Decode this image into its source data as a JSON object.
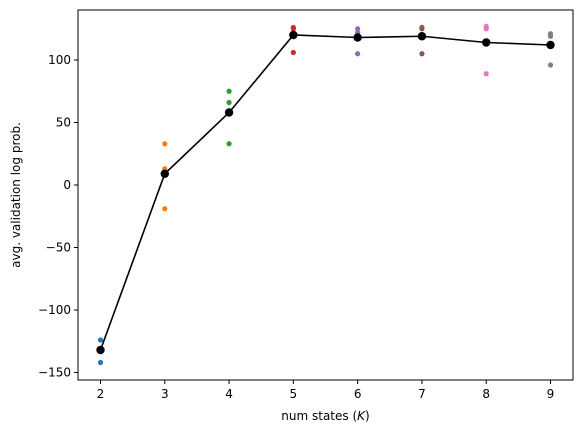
{
  "chart_data": {
    "type": "scatter",
    "title": "",
    "xlabel_prefix": "num states (",
    "xlabel_var": "K",
    "xlabel_suffix": ")",
    "ylabel": "avg. validation log prob.",
    "xlim": [
      1.65,
      9.35
    ],
    "ylim": [
      -156,
      140
    ],
    "xticks": [
      2,
      3,
      4,
      5,
      6,
      7,
      8,
      9
    ],
    "yticks": [
      -150,
      -100,
      -50,
      0,
      50,
      100
    ],
    "grid": false,
    "legend": "none",
    "mean_series": {
      "color": "#000000",
      "x": [
        2,
        3,
        4,
        5,
        6,
        7,
        8,
        9
      ],
      "y": [
        -132,
        9,
        58,
        120,
        118,
        119,
        114,
        112
      ]
    },
    "runs": [
      {
        "x": 2,
        "color": "#1f77b4",
        "y": [
          -124,
          -131,
          -133,
          -142
        ]
      },
      {
        "x": 3,
        "color": "#ff7f0e",
        "y": [
          33,
          13,
          -19
        ]
      },
      {
        "x": 4,
        "color": "#2ca02c",
        "y": [
          75,
          66,
          33
        ]
      },
      {
        "x": 5,
        "color": "#d62728",
        "y": [
          126,
          125,
          106
        ]
      },
      {
        "x": 6,
        "color": "#9467bd",
        "y": [
          125,
          122,
          105
        ]
      },
      {
        "x": 7,
        "color": "#8c564b",
        "y": [
          126,
          125,
          105
        ]
      },
      {
        "x": 8,
        "color": "#e377c2",
        "y": [
          127,
          125,
          89
        ]
      },
      {
        "x": 9,
        "color": "#7f7f7f",
        "y": [
          121,
          119,
          96
        ]
      }
    ]
  }
}
